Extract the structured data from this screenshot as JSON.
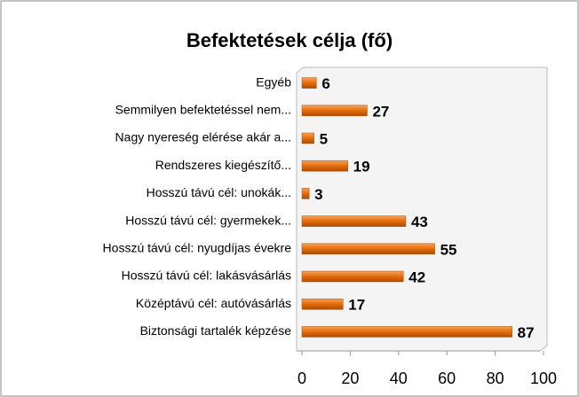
{
  "chart_data": {
    "type": "bar",
    "orientation": "horizontal",
    "title": "Befektetések célja (fő)",
    "categories": [
      "Egyéb",
      "Semmilyen befektetéssel nem...",
      "Nagy nyereség elérése akár a...",
      "Rendszeres kiegészítő...",
      "Hosszú távú cél: unokák...",
      "Hosszú távú cél: gyermekek...",
      "Hosszú távú cél: nyugdíjas évekre",
      "Hosszú távú cél: lakásvásárlás",
      "Középtávú cél: autóvásárlás",
      "Biztonsági tartalék képzése"
    ],
    "values": [
      6,
      27,
      5,
      19,
      3,
      43,
      55,
      42,
      17,
      87
    ],
    "color": "#e46c0a",
    "xlim": [
      0,
      100
    ],
    "xticks": [
      0,
      20,
      40,
      60,
      80,
      100
    ],
    "grid": false
  }
}
